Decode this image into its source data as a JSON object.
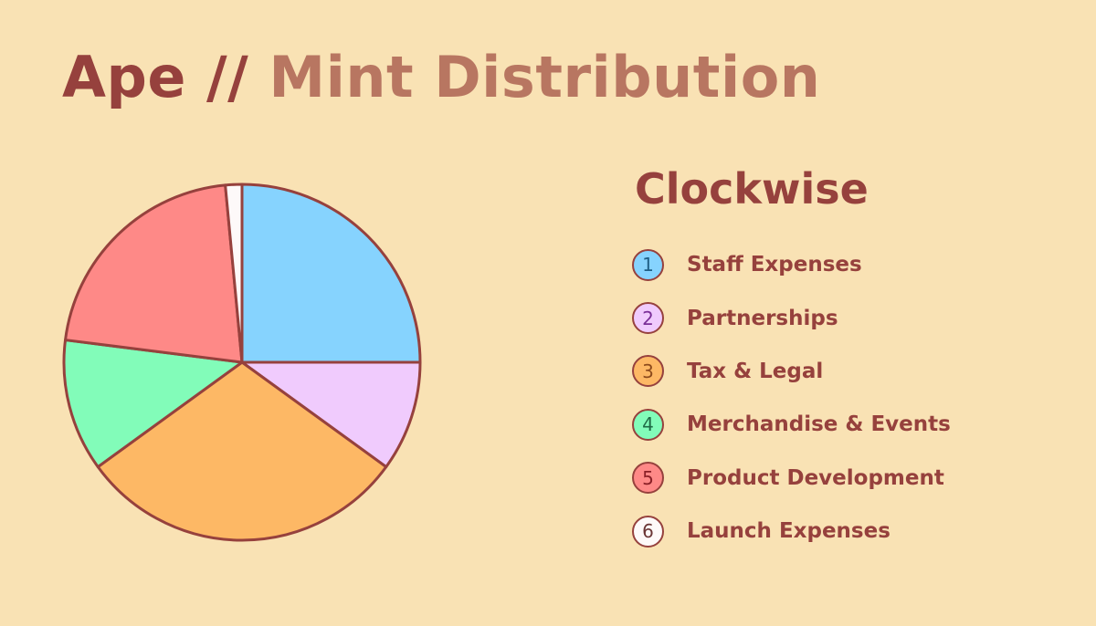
{
  "title": {
    "prefix": "Ape //",
    "main": "Mint Distribution",
    "prefix_color": "#96413d",
    "main_color": "#b87661"
  },
  "legend": {
    "title": "Clockwise",
    "text_color": "#96413d"
  },
  "chart_data": {
    "type": "pie",
    "direction": "clockwise",
    "start_angle_deg": 0,
    "stroke_color": "#96413d",
    "slices": [
      {
        "number": "1",
        "label": "Staff Expenses",
        "value": 25,
        "color": "#86d3fe",
        "text_color": "#1f5f86"
      },
      {
        "number": "2",
        "label": "Partnerships",
        "value": 10,
        "color": "#f0cbfd",
        "text_color": "#7a2e97"
      },
      {
        "number": "3",
        "label": "Tax & Legal",
        "value": 30,
        "color": "#fdb865",
        "text_color": "#8c4a1c"
      },
      {
        "number": "4",
        "label": "Merchandise & Events",
        "value": 12,
        "color": "#82fcb9",
        "text_color": "#1f6a45"
      },
      {
        "number": "5",
        "label": "Product Development",
        "value": 21.5,
        "color": "#fe8987",
        "text_color": "#8a2027"
      },
      {
        "number": "6",
        "label": "Launch Expenses",
        "value": 1.5,
        "color": "#fdf9f9",
        "text_color": "#6a3535"
      }
    ]
  }
}
